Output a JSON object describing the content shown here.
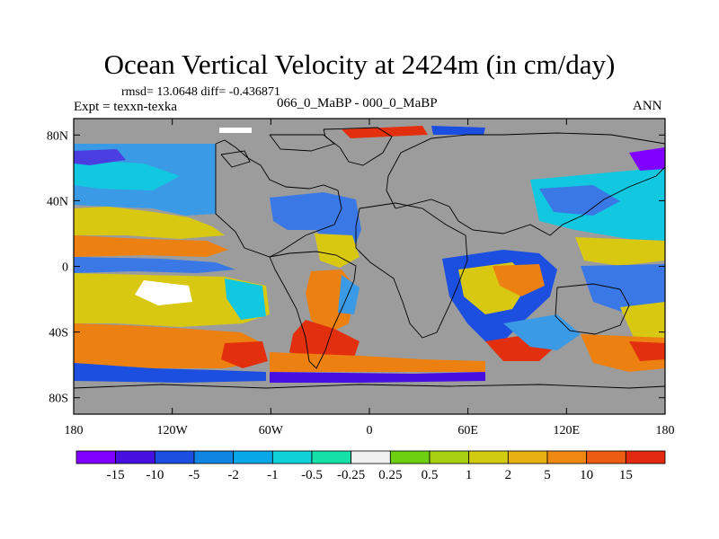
{
  "figure": {
    "title": "Ocean Vertical Velocity at 2424m (in cm/day)",
    "stats": "rmsd= 13.0648  diff= -0.436871",
    "left_label": "Expt = texxn-texka",
    "center_label": "066_0_MaBP - 000_0_MaBP",
    "right_label": "ANN"
  },
  "map": {
    "lon_range": [
      -180,
      180
    ],
    "lat_range": [
      -90,
      90
    ],
    "land_color": "#9c9c9c",
    "coastline_color": "#000000",
    "x_ticks": [
      {
        "lon": -180,
        "label": "180"
      },
      {
        "lon": -120,
        "label": "120W"
      },
      {
        "lon": -60,
        "label": "60W"
      },
      {
        "lon": 0,
        "label": "0"
      },
      {
        "lon": 60,
        "label": "60E"
      },
      {
        "lon": 120,
        "label": "120E"
      },
      {
        "lon": 180,
        "label": "180"
      }
    ],
    "y_ticks": [
      {
        "lat": 80,
        "label": "80N"
      },
      {
        "lat": 40,
        "label": "40N"
      },
      {
        "lat": 0,
        "label": "0"
      },
      {
        "lat": -40,
        "label": "40S"
      },
      {
        "lat": -80,
        "label": "80S"
      }
    ]
  },
  "colorbar": {
    "colors": [
      "#7f00ff",
      "#4810e0",
      "#1c4fe0",
      "#0f84e0",
      "#08a8e8",
      "#10d0d8",
      "#14e0a8",
      "#f0f0f0",
      "#6cd010",
      "#a8d010",
      "#d2cc10",
      "#e6b010",
      "#ee8810",
      "#ec5c12",
      "#e22a10"
    ],
    "labels": [
      "-15",
      "-10",
      "-5",
      "-2",
      "-1",
      "-0.5",
      "-0.25",
      "0.25",
      "0.5",
      "1",
      "2",
      "5",
      "10",
      "15"
    ]
  }
}
